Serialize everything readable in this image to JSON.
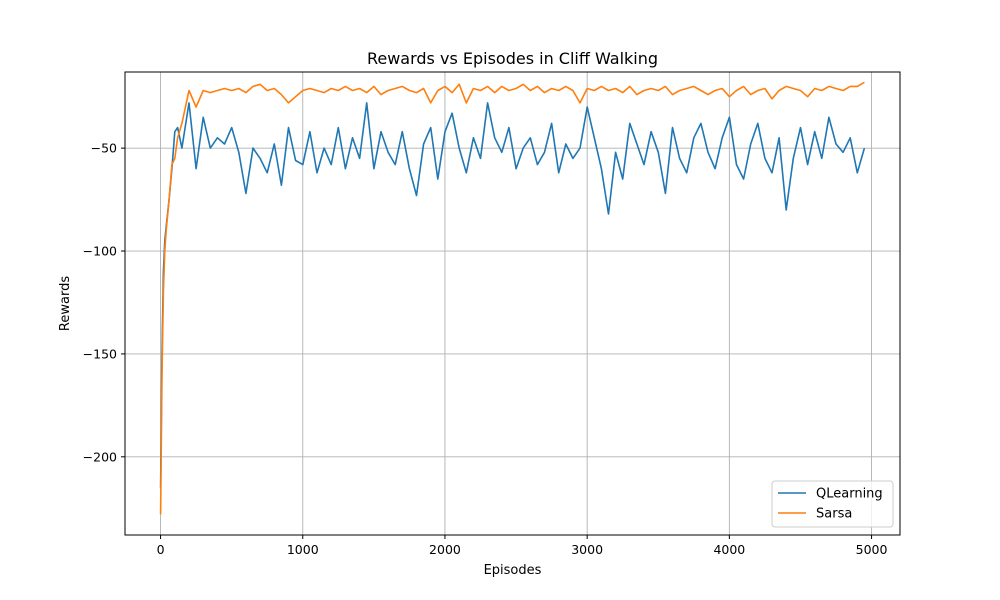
{
  "chart_data": {
    "type": "line",
    "title": "Rewards vs Episodes in Cliff Walking",
    "xlabel": "Episodes",
    "ylabel": "Rewards",
    "xlim": [
      -250,
      5200
    ],
    "ylim": [
      -238,
      -13
    ],
    "xticks": [
      0,
      1000,
      2000,
      3000,
      4000,
      5000
    ],
    "yticks": [
      -200,
      -150,
      -100,
      -50
    ],
    "grid": true,
    "legend_position": "lower-right",
    "colors": {
      "QLearning": "#1f77b4",
      "Sarsa": "#ff7f0e"
    },
    "series": [
      {
        "name": "QLearning",
        "color": "#1f77b4",
        "x": [
          0,
          10,
          20,
          30,
          40,
          60,
          80,
          100,
          120,
          150,
          200,
          250,
          300,
          350,
          400,
          450,
          500,
          550,
          600,
          650,
          700,
          750,
          800,
          850,
          900,
          950,
          1000,
          1050,
          1100,
          1150,
          1200,
          1250,
          1300,
          1350,
          1400,
          1450,
          1500,
          1550,
          1600,
          1650,
          1700,
          1750,
          1800,
          1850,
          1900,
          1950,
          2000,
          2050,
          2100,
          2150,
          2200,
          2250,
          2300,
          2350,
          2400,
          2450,
          2500,
          2550,
          2600,
          2650,
          2700,
          2750,
          2800,
          2850,
          2900,
          2950,
          3000,
          3050,
          3100,
          3150,
          3200,
          3250,
          3300,
          3350,
          3400,
          3450,
          3500,
          3550,
          3600,
          3650,
          3700,
          3750,
          3800,
          3850,
          3900,
          3950,
          4000,
          4050,
          4100,
          4150,
          4200,
          4250,
          4300,
          4350,
          4400,
          4450,
          4500,
          4550,
          4600,
          4650,
          4700,
          4750,
          4800,
          4850,
          4900,
          4950
        ],
        "y": [
          -215,
          -150,
          -110,
          -95,
          -88,
          -75,
          -60,
          -42,
          -40,
          -50,
          -28,
          -60,
          -35,
          -50,
          -45,
          -48,
          -40,
          -52,
          -72,
          -50,
          -55,
          -62,
          -48,
          -68,
          -40,
          -56,
          -58,
          -42,
          -62,
          -50,
          -58,
          -40,
          -60,
          -45,
          -55,
          -28,
          -60,
          -42,
          -52,
          -58,
          -42,
          -60,
          -73,
          -48,
          -40,
          -65,
          -42,
          -33,
          -50,
          -62,
          -45,
          -55,
          -28,
          -45,
          -52,
          -40,
          -60,
          -50,
          -45,
          -58,
          -52,
          -38,
          -62,
          -48,
          -55,
          -50,
          -30,
          -45,
          -60,
          -82,
          -52,
          -65,
          -38,
          -48,
          -58,
          -42,
          -52,
          -72,
          -40,
          -55,
          -62,
          -45,
          -38,
          -52,
          -60,
          -45,
          -35,
          -58,
          -65,
          -48,
          -38,
          -55,
          -62,
          -45,
          -80,
          -55,
          -40,
          -58,
          -42,
          -55,
          -35,
          -48,
          -52,
          -45,
          -62,
          -50
        ]
      },
      {
        "name": "Sarsa",
        "color": "#ff7f0e",
        "x": [
          0,
          10,
          20,
          30,
          40,
          60,
          80,
          100,
          120,
          150,
          200,
          250,
          300,
          350,
          400,
          450,
          500,
          550,
          600,
          650,
          700,
          750,
          800,
          850,
          900,
          950,
          1000,
          1050,
          1100,
          1150,
          1200,
          1250,
          1300,
          1350,
          1400,
          1450,
          1500,
          1550,
          1600,
          1650,
          1700,
          1750,
          1800,
          1850,
          1900,
          1950,
          2000,
          2050,
          2100,
          2150,
          2200,
          2250,
          2300,
          2350,
          2400,
          2450,
          2500,
          2550,
          2600,
          2650,
          2700,
          2750,
          2800,
          2850,
          2900,
          2950,
          3000,
          3050,
          3100,
          3150,
          3200,
          3250,
          3300,
          3350,
          3400,
          3450,
          3500,
          3550,
          3600,
          3650,
          3700,
          3750,
          3800,
          3850,
          3900,
          3950,
          4000,
          4050,
          4100,
          4150,
          4200,
          4250,
          4300,
          4350,
          4400,
          4450,
          4500,
          4550,
          4600,
          4650,
          4700,
          4750,
          4800,
          4850,
          4900,
          4950
        ],
        "y": [
          -228,
          -160,
          -120,
          -100,
          -90,
          -75,
          -58,
          -55,
          -45,
          -38,
          -22,
          -30,
          -22,
          -23,
          -22,
          -21,
          -22,
          -21,
          -23,
          -20,
          -19,
          -22,
          -21,
          -24,
          -28,
          -25,
          -22,
          -21,
          -22,
          -23,
          -21,
          -22,
          -20,
          -22,
          -21,
          -23,
          -20,
          -24,
          -22,
          -21,
          -20,
          -22,
          -23,
          -21,
          -28,
          -22,
          -20,
          -23,
          -19,
          -28,
          -21,
          -22,
          -20,
          -23,
          -20,
          -22,
          -21,
          -19,
          -22,
          -20,
          -23,
          -21,
          -22,
          -20,
          -22,
          -28,
          -21,
          -22,
          -20,
          -22,
          -21,
          -23,
          -20,
          -24,
          -22,
          -21,
          -22,
          -20,
          -24,
          -22,
          -21,
          -20,
          -22,
          -24,
          -22,
          -21,
          -25,
          -22,
          -20,
          -24,
          -22,
          -21,
          -26,
          -22,
          -20,
          -21,
          -22,
          -25,
          -21,
          -22,
          -20,
          -21,
          -22,
          -20,
          -20,
          -18
        ]
      }
    ]
  }
}
